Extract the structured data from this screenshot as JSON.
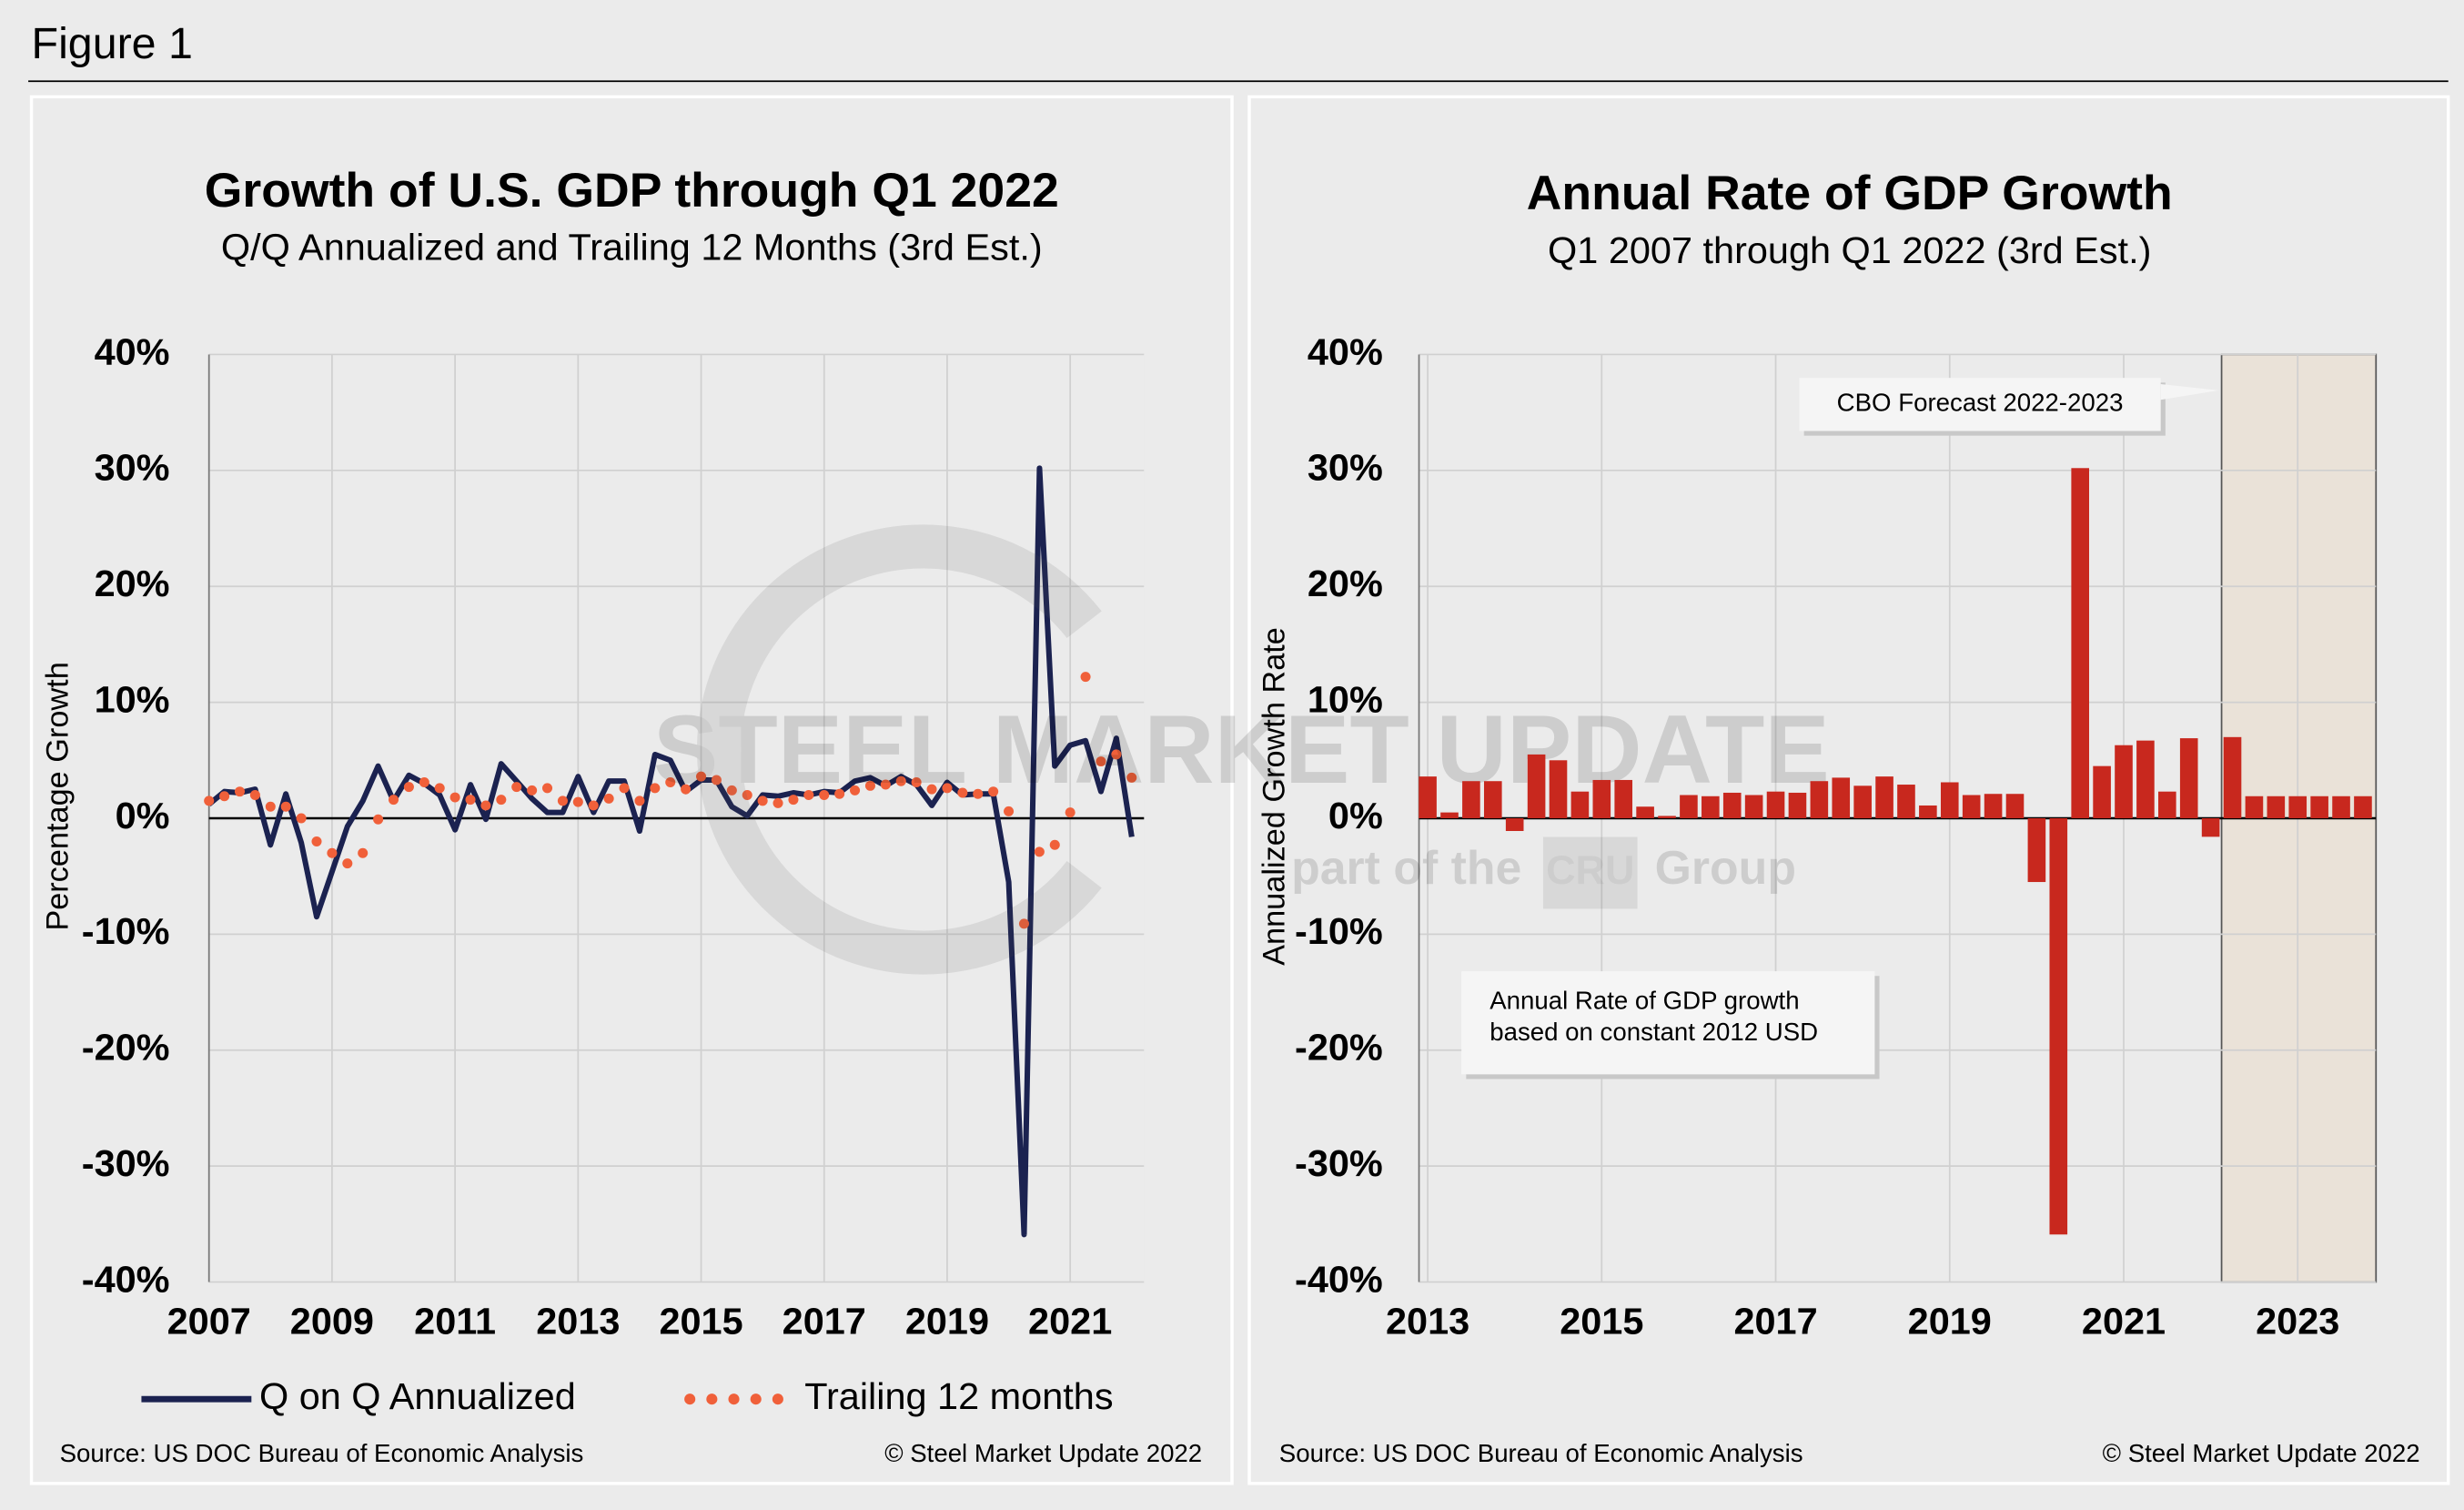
{
  "figure_title": "Figure 1",
  "chart_data": [
    {
      "type": "line",
      "title": "Growth of U.S. GDP through Q1 2022",
      "subtitle": "Q/Q Annualized and Trailing 12 Months (3rd Est.)",
      "ylabel": "Percentage Growth",
      "x": [
        2007,
        2007.25,
        2007.5,
        2007.75,
        2008,
        2008.25,
        2008.5,
        2008.75,
        2009,
        2009.25,
        2009.5,
        2009.75,
        2010,
        2010.25,
        2010.5,
        2010.75,
        2011,
        2011.25,
        2011.5,
        2011.75,
        2012,
        2012.25,
        2012.5,
        2012.75,
        2013,
        2013.25,
        2013.5,
        2013.75,
        2014,
        2014.25,
        2014.5,
        2014.75,
        2015,
        2015.25,
        2015.5,
        2015.75,
        2016,
        2016.25,
        2016.5,
        2016.75,
        2017,
        2017.25,
        2017.5,
        2017.75,
        2018,
        2018.25,
        2018.5,
        2018.75,
        2019,
        2019.25,
        2019.5,
        2019.75,
        2020,
        2020.25,
        2020.5,
        2020.75,
        2021,
        2021.25,
        2021.5,
        2021.75,
        2022
      ],
      "series": [
        {
          "name": "Q on Q Annualized",
          "color": "#1b2250",
          "style": "solid",
          "values": [
            1.2,
            2.3,
            2.2,
            2.5,
            -2.3,
            2.1,
            -2.1,
            -8.5,
            -4.6,
            -0.7,
            1.5,
            4.5,
            1.5,
            3.7,
            3.0,
            2.0,
            -1.0,
            2.9,
            -0.1,
            4.7,
            3.2,
            1.7,
            0.5,
            0.5,
            3.6,
            0.5,
            3.2,
            3.2,
            -1.1,
            5.5,
            5.0,
            2.3,
            3.3,
            3.3,
            1.0,
            0.2,
            2.0,
            1.9,
            2.2,
            2.0,
            2.3,
            2.2,
            3.2,
            3.5,
            2.8,
            3.6,
            2.9,
            1.1,
            3.1,
            2.0,
            2.1,
            2.1,
            -5.5,
            -35.9,
            30.2,
            4.5,
            6.3,
            6.7,
            2.3,
            6.9,
            -1.6
          ]
        },
        {
          "name": "Trailing 12 months",
          "color": "#f0603a",
          "style": "dotted",
          "values": [
            1.5,
            1.9,
            2.3,
            2.0,
            1.0,
            1.0,
            0.0,
            -2.0,
            -3.0,
            -3.9,
            -3.0,
            -0.1,
            1.6,
            2.7,
            3.1,
            2.6,
            1.8,
            1.6,
            1.1,
            1.6,
            2.7,
            2.4,
            2.6,
            1.5,
            1.4,
            1.1,
            1.7,
            2.6,
            1.5,
            2.6,
            3.1,
            2.5,
            3.6,
            3.3,
            2.4,
            2.0,
            1.5,
            1.3,
            1.6,
            2.0,
            2.0,
            2.1,
            2.4,
            2.8,
            2.9,
            3.2,
            3.1,
            2.5,
            2.6,
            2.2,
            2.1,
            2.3,
            0.6,
            -9.1,
            -2.9,
            -2.3,
            0.5,
            12.2,
            4.9,
            5.5,
            3.5
          ]
        }
      ],
      "xlim": [
        2007,
        2022.2
      ],
      "xticks": [
        2007,
        2009,
        2011,
        2013,
        2015,
        2017,
        2019,
        2021
      ],
      "ylim": [
        -40,
        40
      ],
      "yticks": [
        {
          "value": -40,
          "label": "-40%"
        },
        {
          "value": -30,
          "label": "-30%"
        },
        {
          "value": -20,
          "label": "-20%"
        },
        {
          "value": -10,
          "label": "-10%"
        },
        {
          "value": 0,
          "label": "0%"
        },
        {
          "value": 10,
          "label": "10%"
        },
        {
          "value": 20,
          "label": "20%"
        },
        {
          "value": 30,
          "label": "30%"
        },
        {
          "value": 40,
          "label": "40%"
        }
      ],
      "grid": true,
      "legend": "bottom",
      "source": "Source: US DOC Bureau of Economic Analysis",
      "copyright": "© Steel Market Update 2022"
    },
    {
      "type": "bar",
      "title": "Annual Rate of GDP Growth",
      "subtitle": "Q1 2007 through Q1 2022 (3rd Est.)",
      "ylabel": "Annualized Growth Rate",
      "x": [
        2013,
        2013.25,
        2013.5,
        2013.75,
        2014,
        2014.25,
        2014.5,
        2014.75,
        2015,
        2015.25,
        2015.5,
        2015.75,
        2016,
        2016.25,
        2016.5,
        2016.75,
        2017,
        2017.25,
        2017.5,
        2017.75,
        2018,
        2018.25,
        2018.5,
        2018.75,
        2019,
        2019.25,
        2019.5,
        2019.75,
        2020,
        2020.25,
        2020.5,
        2020.75,
        2021,
        2021.25,
        2021.5,
        2021.75,
        2022,
        2022.25,
        2022.5,
        2022.75,
        2023,
        2023.25,
        2023.5,
        2023.75
      ],
      "values": [
        3.6,
        0.5,
        3.2,
        3.2,
        -1.1,
        5.5,
        5.0,
        2.3,
        3.3,
        3.3,
        1.0,
        0.2,
        2.0,
        1.9,
        2.2,
        2.0,
        2.3,
        2.2,
        3.2,
        3.5,
        2.8,
        3.6,
        2.9,
        1.1,
        3.1,
        2.0,
        2.1,
        2.1,
        -5.5,
        -35.9,
        30.2,
        4.5,
        6.3,
        6.7,
        2.3,
        6.9,
        -1.6,
        7.0,
        1.9,
        1.9,
        1.9,
        1.9,
        1.9,
        1.9
      ],
      "color": "#c8281e",
      "xlim": [
        2012.9,
        2023.9
      ],
      "xticks": [
        2013,
        2015,
        2017,
        2019,
        2021,
        2023
      ],
      "ylim": [
        -40,
        40
      ],
      "yticks": [
        {
          "value": -40,
          "label": "-40%"
        },
        {
          "value": -30,
          "label": "-30%"
        },
        {
          "value": -20,
          "label": "-20%"
        },
        {
          "value": -10,
          "label": "-10%"
        },
        {
          "value": 0,
          "label": "0%"
        },
        {
          "value": 10,
          "label": "10%"
        },
        {
          "value": 20,
          "label": "20%"
        },
        {
          "value": 30,
          "label": "30%"
        },
        {
          "value": 40,
          "label": "40%"
        }
      ],
      "grid": true,
      "highlight_x": [
        2022.125,
        2023.9
      ],
      "annotations": [
        [
          "CBO Forecast 2022-2023"
        ],
        [
          "Annual Rate of GDP growth",
          "based on constant 2012 USD"
        ]
      ],
      "watermark": [
        "STEEL MARKET UPDATE",
        "part of the",
        "CRU",
        "Group"
      ],
      "source": "Source: US DOC Bureau of Economic Analysis",
      "copyright": "© Steel Market Update 2022"
    }
  ]
}
